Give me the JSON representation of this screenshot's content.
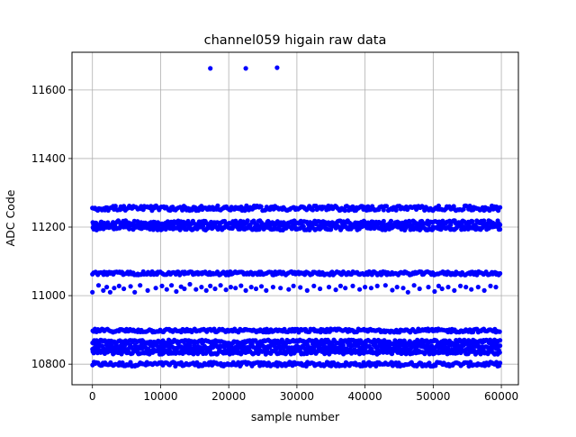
{
  "chart_data": {
    "type": "scatter",
    "title": "channel059 higain raw data",
    "xlabel": "sample number",
    "ylabel": "ADC Code",
    "xlim": [
      -3000,
      62500
    ],
    "ylim": [
      10740,
      11710
    ],
    "xticks": [
      0,
      10000,
      20000,
      30000,
      40000,
      50000,
      60000
    ],
    "xtick_labels": [
      "0",
      "10000",
      "20000",
      "30000",
      "40000",
      "50000",
      "60000"
    ],
    "yticks": [
      10800,
      11000,
      11200,
      11400,
      11600
    ],
    "ytick_labels": [
      "10800",
      "11000",
      "11200",
      "11400",
      "11600"
    ],
    "grid": true,
    "marker_color": "#0000ff",
    "n_samples": 60000,
    "x_range": [
      0,
      59800
    ],
    "bands": [
      {
        "center": 10800,
        "spread": 6
      },
      {
        "center": 10835,
        "spread": 6
      },
      {
        "center": 10850,
        "spread": 7
      },
      {
        "center": 10865,
        "spread": 6
      },
      {
        "center": 10898,
        "spread": 5
      },
      {
        "center": 11065,
        "spread": 5
      },
      {
        "center": 11198,
        "spread": 7
      },
      {
        "center": 11212,
        "spread": 7
      },
      {
        "center": 11255,
        "spread": 7
      }
    ],
    "sparse_points": [
      {
        "x": 0,
        "y": 11010
      },
      {
        "x": 900,
        "y": 11030
      },
      {
        "x": 1600,
        "y": 11015
      },
      {
        "x": 2100,
        "y": 11025
      },
      {
        "x": 2600,
        "y": 11010
      },
      {
        "x": 3200,
        "y": 11022
      },
      {
        "x": 3900,
        "y": 11028
      },
      {
        "x": 4600,
        "y": 11020
      },
      {
        "x": 5600,
        "y": 11027
      },
      {
        "x": 6200,
        "y": 11010
      },
      {
        "x": 7000,
        "y": 11030
      },
      {
        "x": 8100,
        "y": 11015
      },
      {
        "x": 9300,
        "y": 11022
      },
      {
        "x": 10200,
        "y": 11028
      },
      {
        "x": 10900,
        "y": 11018
      },
      {
        "x": 11600,
        "y": 11030
      },
      {
        "x": 12300,
        "y": 11012
      },
      {
        "x": 13000,
        "y": 11026
      },
      {
        "x": 13500,
        "y": 11020
      },
      {
        "x": 14300,
        "y": 11033
      },
      {
        "x": 15200,
        "y": 11018
      },
      {
        "x": 16000,
        "y": 11025
      },
      {
        "x": 16700,
        "y": 11015
      },
      {
        "x": 17300,
        "y": 11028
      },
      {
        "x": 18000,
        "y": 11020
      },
      {
        "x": 18800,
        "y": 11030
      },
      {
        "x": 19600,
        "y": 11017
      },
      {
        "x": 20300,
        "y": 11025
      },
      {
        "x": 21000,
        "y": 11022
      },
      {
        "x": 21800,
        "y": 11029
      },
      {
        "x": 22500,
        "y": 11015
      },
      {
        "x": 23300,
        "y": 11025
      },
      {
        "x": 24000,
        "y": 11020
      },
      {
        "x": 24800,
        "y": 11027
      },
      {
        "x": 25500,
        "y": 11015
      },
      {
        "x": 26500,
        "y": 11025
      },
      {
        "x": 27600,
        "y": 11022
      },
      {
        "x": 28800,
        "y": 11018
      },
      {
        "x": 29500,
        "y": 11028
      },
      {
        "x": 30500,
        "y": 11024
      },
      {
        "x": 31500,
        "y": 11015
      },
      {
        "x": 32500,
        "y": 11028
      },
      {
        "x": 33400,
        "y": 11020
      },
      {
        "x": 34700,
        "y": 11025
      },
      {
        "x": 35700,
        "y": 11017
      },
      {
        "x": 36400,
        "y": 11028
      },
      {
        "x": 37100,
        "y": 11022
      },
      {
        "x": 38200,
        "y": 11028
      },
      {
        "x": 39200,
        "y": 11018
      },
      {
        "x": 40000,
        "y": 11025
      },
      {
        "x": 40900,
        "y": 11022
      },
      {
        "x": 41800,
        "y": 11028
      },
      {
        "x": 43000,
        "y": 11030
      },
      {
        "x": 44000,
        "y": 11016
      },
      {
        "x": 44700,
        "y": 11025
      },
      {
        "x": 45600,
        "y": 11022
      },
      {
        "x": 46300,
        "y": 11010
      },
      {
        "x": 47200,
        "y": 11030
      },
      {
        "x": 48000,
        "y": 11020
      },
      {
        "x": 49300,
        "y": 11025
      },
      {
        "x": 50200,
        "y": 11012
      },
      {
        "x": 50800,
        "y": 11028
      },
      {
        "x": 51300,
        "y": 11020
      },
      {
        "x": 52200,
        "y": 11025
      },
      {
        "x": 53100,
        "y": 11015
      },
      {
        "x": 54000,
        "y": 11028
      },
      {
        "x": 54800,
        "y": 11025
      },
      {
        "x": 55600,
        "y": 11018
      },
      {
        "x": 56600,
        "y": 11025
      },
      {
        "x": 57500,
        "y": 11015
      },
      {
        "x": 58400,
        "y": 11028
      },
      {
        "x": 59200,
        "y": 11025
      }
    ],
    "outliers": [
      {
        "x": 17300,
        "y": 11663
      },
      {
        "x": 22500,
        "y": 11663
      },
      {
        "x": 27100,
        "y": 11665
      }
    ]
  }
}
